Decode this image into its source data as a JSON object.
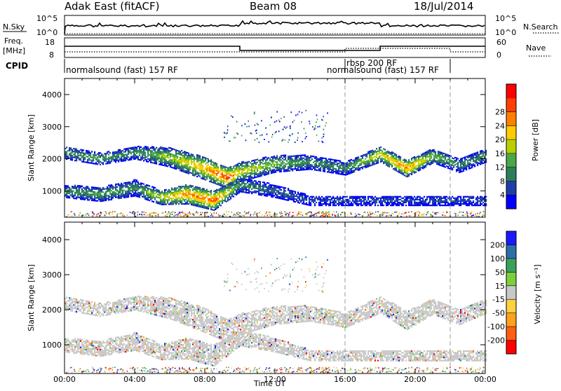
{
  "header": {
    "station": "Adak East (fitACF)",
    "beam": "Beam 08",
    "date": "18/Jul/2014"
  },
  "panels": {
    "nsky_label": "N.Sky",
    "nsearch_label": "N.Search",
    "freq_label_1": "Freq.",
    "freq_label_2": "[MHz]",
    "nave_label": "Nave",
    "cpid_label": "CPID",
    "nsky_ticks": [
      "10^5",
      "10^0"
    ],
    "nsearch_ticks": [
      "10^5",
      "10^0"
    ],
    "freq_ticks": [
      "18",
      "8"
    ],
    "nave_ticks": [
      "60",
      "0"
    ],
    "cpid_segments": [
      {
        "label": "normalsound (fast) 157 RF",
        "start": 0.0,
        "end": 16.0
      },
      {
        "label": "rbsp 200 RF",
        "start": 16.0,
        "end": 18.0
      },
      {
        "label": "normalsound (fast) 157 RF",
        "start": 16.0,
        "end": 22.0
      }
    ]
  },
  "chart_data": [
    {
      "type": "heatmap",
      "name": "power",
      "ylabel": "Slant Range [km]",
      "xlabel": "",
      "xlim": [
        0,
        24
      ],
      "ylim": [
        180,
        4500
      ],
      "yticks": [
        "1000",
        "2000",
        "3000",
        "4000"
      ],
      "xticks": [
        "00:00",
        "04:00",
        "08:00",
        "12:00",
        "16:00",
        "20:00",
        "00:00"
      ],
      "colorbar": {
        "label": "Power [dB]",
        "ticks": [
          "4",
          "8",
          "12",
          "16",
          "20",
          "24",
          "28"
        ],
        "colors": [
          "#0000ff",
          "#1f3fa8",
          "#2e7d5a",
          "#4aa84a",
          "#b8d000",
          "#ffcc00",
          "#ff8000",
          "#ff4000",
          "#ff0000"
        ]
      },
      "bands": [
        {
          "t": [
            0.0,
            2.0,
            4.0,
            6.0,
            8.0,
            9.3,
            10.0,
            12.0,
            14.0,
            16.0,
            18.0,
            19.5,
            21.0,
            22.5,
            24.0
          ],
          "center": [
            2200,
            2000,
            2200,
            2050,
            1700,
            1400,
            1600,
            1850,
            1900,
            1700,
            2150,
            1700,
            2100,
            1800,
            2100
          ],
          "width": [
            200,
            180,
            200,
            300,
            350,
            320,
            300,
            260,
            220,
            200,
            240,
            260,
            220,
            220,
            200
          ],
          "peak_db": [
            10,
            12,
            10,
            16,
            22,
            28,
            18,
            14,
            10,
            10,
            18,
            24,
            14,
            10,
            10
          ]
        },
        {
          "t": [
            0.0,
            2.0,
            4.0,
            5.5,
            7.0,
            8.5,
            10.0,
            12.0,
            14.0
          ],
          "center": [
            1000,
            900,
            1100,
            800,
            900,
            700,
            1200,
            1000,
            700
          ],
          "width": [
            200,
            220,
            250,
            220,
            300,
            300,
            220,
            200,
            150
          ],
          "peak_db": [
            10,
            12,
            10,
            18,
            24,
            26,
            10,
            8,
            6
          ]
        }
      ]
    },
    {
      "type": "heatmap",
      "name": "velocity",
      "ylabel": "Slant Range [km]",
      "xlabel": "Time UT",
      "xlim": [
        0,
        24
      ],
      "ylim": [
        180,
        4500
      ],
      "yticks": [
        "1000",
        "2000",
        "3000",
        "4000"
      ],
      "xticks": [
        "00:00",
        "04:00",
        "08:00",
        "12:00",
        "16:00",
        "20:00",
        "00:00"
      ],
      "colorbar": {
        "label": "Velocity [m s⁻¹]",
        "ticks": [
          "200",
          "100",
          "50",
          "15",
          "-15",
          "-50",
          "-100",
          "-200"
        ],
        "colors": [
          "#1a1aff",
          "#2e6ea8",
          "#3ba05a",
          "#7ccf3c",
          "#c8c8c8",
          "#ffd040",
          "#ffa020",
          "#ff6010",
          "#ff0000"
        ]
      }
    }
  ],
  "colors": {
    "ground_scatter": "#c8c8c8",
    "background": "#ffffff"
  }
}
